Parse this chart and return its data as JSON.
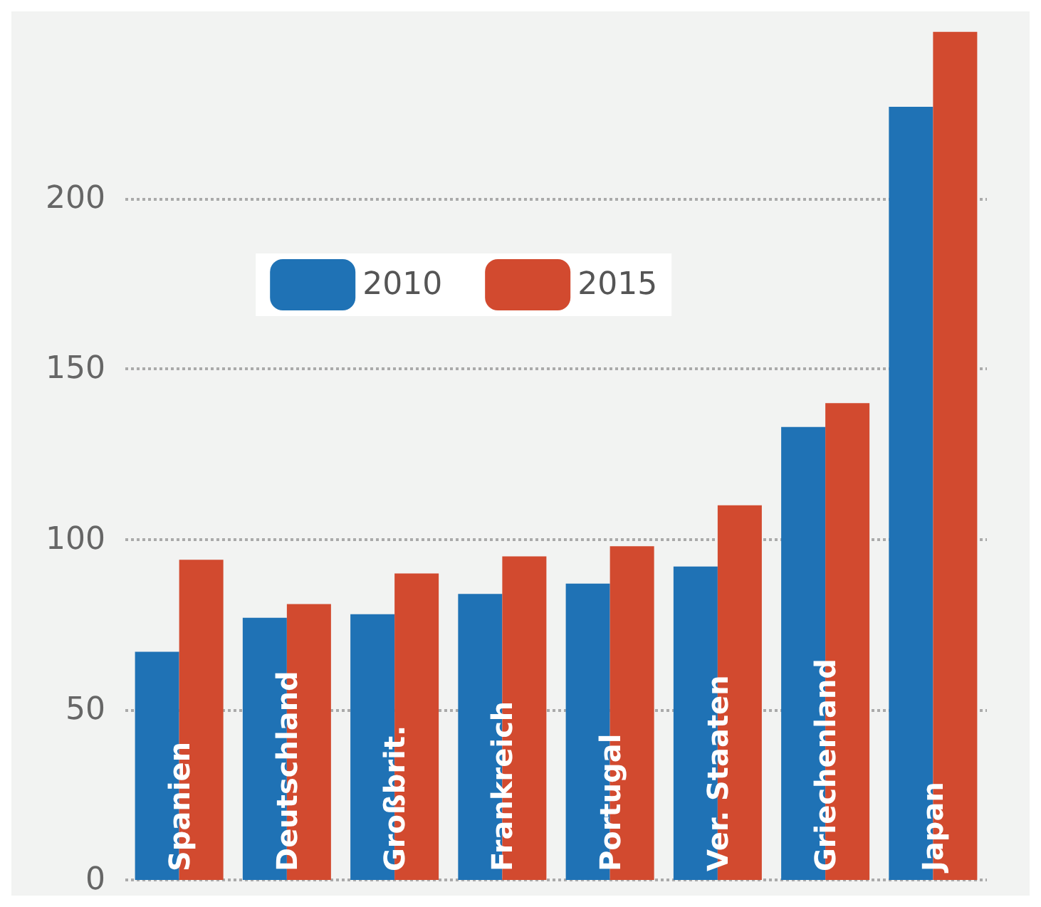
{
  "chart_data": {
    "type": "bar",
    "categories": [
      "Spanien",
      "Deutschland",
      "Großbrit.",
      "Frankreich",
      "Portugal",
      "Ver. Staaten",
      "Griechenland",
      "Japan"
    ],
    "series": [
      {
        "name": "2010",
        "color": "#1f72b5",
        "values": [
          67,
          77,
          78,
          84,
          87,
          92,
          133,
          227
        ]
      },
      {
        "name": "2015",
        "color": "#d24a2f",
        "values": [
          94,
          81,
          90,
          95,
          98,
          110,
          140,
          249
        ]
      }
    ],
    "ylim": [
      0,
      250
    ],
    "yticks": [
      0,
      50,
      100,
      150,
      200
    ],
    "grid": "y",
    "legend": "top left"
  }
}
